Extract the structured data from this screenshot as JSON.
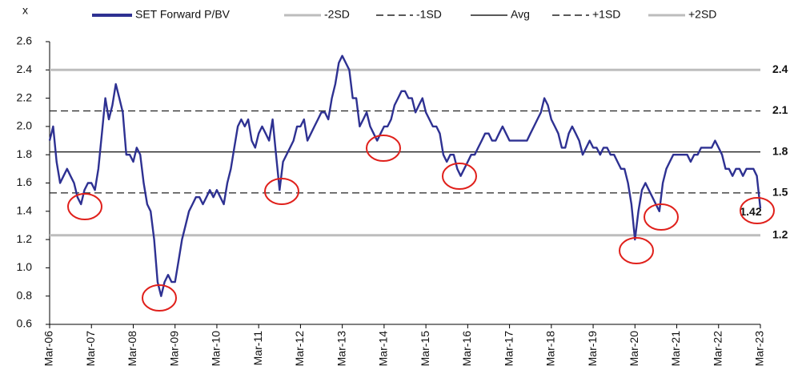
{
  "chart_data": {
    "type": "line",
    "y_unit": "x",
    "categories": [
      "Mar-06",
      null,
      null,
      null,
      null,
      null,
      null,
      null,
      null,
      null,
      null,
      null,
      "Mar-07",
      null,
      null,
      null,
      null,
      null,
      null,
      null,
      null,
      null,
      null,
      null,
      "Mar-08",
      null,
      null,
      null,
      null,
      null,
      null,
      null,
      null,
      null,
      null,
      null,
      "Mar-09",
      null,
      null,
      null,
      null,
      null,
      null,
      null,
      null,
      null,
      null,
      null,
      "Mar-10",
      null,
      null,
      null,
      null,
      null,
      null,
      null,
      null,
      null,
      null,
      null,
      "Mar-11",
      null,
      null,
      null,
      null,
      null,
      null,
      null,
      null,
      null,
      null,
      null,
      "Mar-12",
      null,
      null,
      null,
      null,
      null,
      null,
      null,
      null,
      null,
      null,
      null,
      "Mar-13",
      null,
      null,
      null,
      null,
      null,
      null,
      null,
      null,
      null,
      null,
      null,
      "Mar-14",
      null,
      null,
      null,
      null,
      null,
      null,
      null,
      null,
      null,
      null,
      null,
      "Mar-15",
      null,
      null,
      null,
      null,
      null,
      null,
      null,
      null,
      null,
      null,
      null,
      "Mar-16",
      null,
      null,
      null,
      null,
      null,
      null,
      null,
      null,
      null,
      null,
      null,
      "Mar-17",
      null,
      null,
      null,
      null,
      null,
      null,
      null,
      null,
      null,
      null,
      null,
      "Mar-18",
      null,
      null,
      null,
      null,
      null,
      null,
      null,
      null,
      null,
      null,
      null,
      "Mar-19",
      null,
      null,
      null,
      null,
      null,
      null,
      null,
      null,
      null,
      null,
      null,
      "Mar-20",
      null,
      null,
      null,
      null,
      null,
      null,
      null,
      null,
      null,
      null,
      null,
      "Mar-21",
      null,
      null,
      null,
      null,
      null,
      null,
      null,
      null,
      null,
      null,
      null,
      "Mar-22",
      null,
      null,
      null,
      null,
      null,
      null,
      null,
      null,
      null,
      null,
      null,
      "Mar-23"
    ],
    "series": [
      {
        "name": "SET Forward P/BV",
        "color": "#2e3192",
        "values": [
          1.9,
          2.0,
          1.75,
          1.6,
          1.65,
          1.7,
          1.65,
          1.6,
          1.5,
          1.45,
          1.55,
          1.6,
          1.6,
          1.55,
          1.7,
          1.95,
          2.2,
          2.05,
          2.15,
          2.3,
          2.2,
          2.1,
          1.8,
          1.8,
          1.75,
          1.85,
          1.8,
          1.6,
          1.45,
          1.4,
          1.2,
          0.9,
          0.8,
          0.9,
          0.95,
          0.9,
          0.9,
          1.05,
          1.2,
          1.3,
          1.4,
          1.45,
          1.5,
          1.5,
          1.45,
          1.5,
          1.55,
          1.5,
          1.55,
          1.5,
          1.45,
          1.6,
          1.7,
          1.85,
          2.0,
          2.05,
          2.0,
          2.05,
          1.9,
          1.85,
          1.95,
          2.0,
          1.95,
          1.9,
          2.05,
          1.8,
          1.55,
          1.75,
          1.8,
          1.85,
          1.9,
          2.0,
          2.0,
          2.05,
          1.9,
          1.95,
          2.0,
          2.05,
          2.1,
          2.1,
          2.05,
          2.2,
          2.3,
          2.45,
          2.5,
          2.45,
          2.4,
          2.2,
          2.2,
          2.0,
          2.05,
          2.1,
          2.0,
          1.95,
          1.9,
          1.95,
          2.0,
          2.0,
          2.05,
          2.15,
          2.2,
          2.25,
          2.25,
          2.2,
          2.2,
          2.1,
          2.15,
          2.2,
          2.1,
          2.05,
          2.0,
          2.0,
          1.95,
          1.8,
          1.75,
          1.8,
          1.8,
          1.7,
          1.65,
          1.7,
          1.75,
          1.8,
          1.8,
          1.85,
          1.9,
          1.95,
          1.95,
          1.9,
          1.9,
          1.95,
          2.0,
          1.95,
          1.9,
          1.9,
          1.9,
          1.9,
          1.9,
          1.9,
          1.95,
          2.0,
          2.05,
          2.1,
          2.2,
          2.15,
          2.05,
          2.0,
          1.95,
          1.85,
          1.85,
          1.95,
          2.0,
          1.95,
          1.9,
          1.8,
          1.85,
          1.9,
          1.85,
          1.85,
          1.8,
          1.85,
          1.85,
          1.8,
          1.8,
          1.75,
          1.7,
          1.7,
          1.6,
          1.45,
          1.2,
          1.4,
          1.55,
          1.6,
          1.55,
          1.5,
          1.45,
          1.4,
          1.6,
          1.7,
          1.75,
          1.8,
          1.8,
          1.8,
          1.8,
          1.8,
          1.75,
          1.8,
          1.8,
          1.85,
          1.85,
          1.85,
          1.85,
          1.9,
          1.85,
          1.8,
          1.7,
          1.7,
          1.65,
          1.7,
          1.7,
          1.65,
          1.7,
          1.7,
          1.7,
          1.65,
          1.42
        ]
      }
    ],
    "reference_lines": [
      {
        "name": "-2SD",
        "value": 1.23,
        "label": "1.2",
        "color": "#bdbdbd",
        "label_color": "#a0a0a0",
        "dashed": false,
        "width": 3
      },
      {
        "name": "-1SD",
        "value": 1.53,
        "label": "1.5",
        "color": "#222222",
        "label_color": "#333333",
        "dashed": true,
        "width": 1.3
      },
      {
        "name": "Avg",
        "value": 1.82,
        "label": "1.8",
        "color": "#222222",
        "label_color": "#000000",
        "dashed": false,
        "width": 1.3
      },
      {
        "name": "+1SD",
        "value": 2.11,
        "label": "2.1",
        "color": "#222222",
        "label_color": "#333333",
        "dashed": true,
        "width": 1.3
      },
      {
        "name": "+2SD",
        "value": 2.4,
        "label": "2.4",
        "color": "#bdbdbd",
        "label_color": "#a0a0a0",
        "dashed": false,
        "width": 3
      }
    ],
    "annotations": [
      "1.42"
    ],
    "ylim": [
      0.6,
      2.6
    ],
    "yticks": [
      0.6,
      0.8,
      {
        "value": 1.0,
        "label": "1.0"
      },
      1.2,
      1.4,
      1.6,
      1.8,
      {
        "value": 2.0,
        "label": "2.0"
      },
      2.2,
      2.4,
      2.6
    ],
    "legend": "top"
  }
}
